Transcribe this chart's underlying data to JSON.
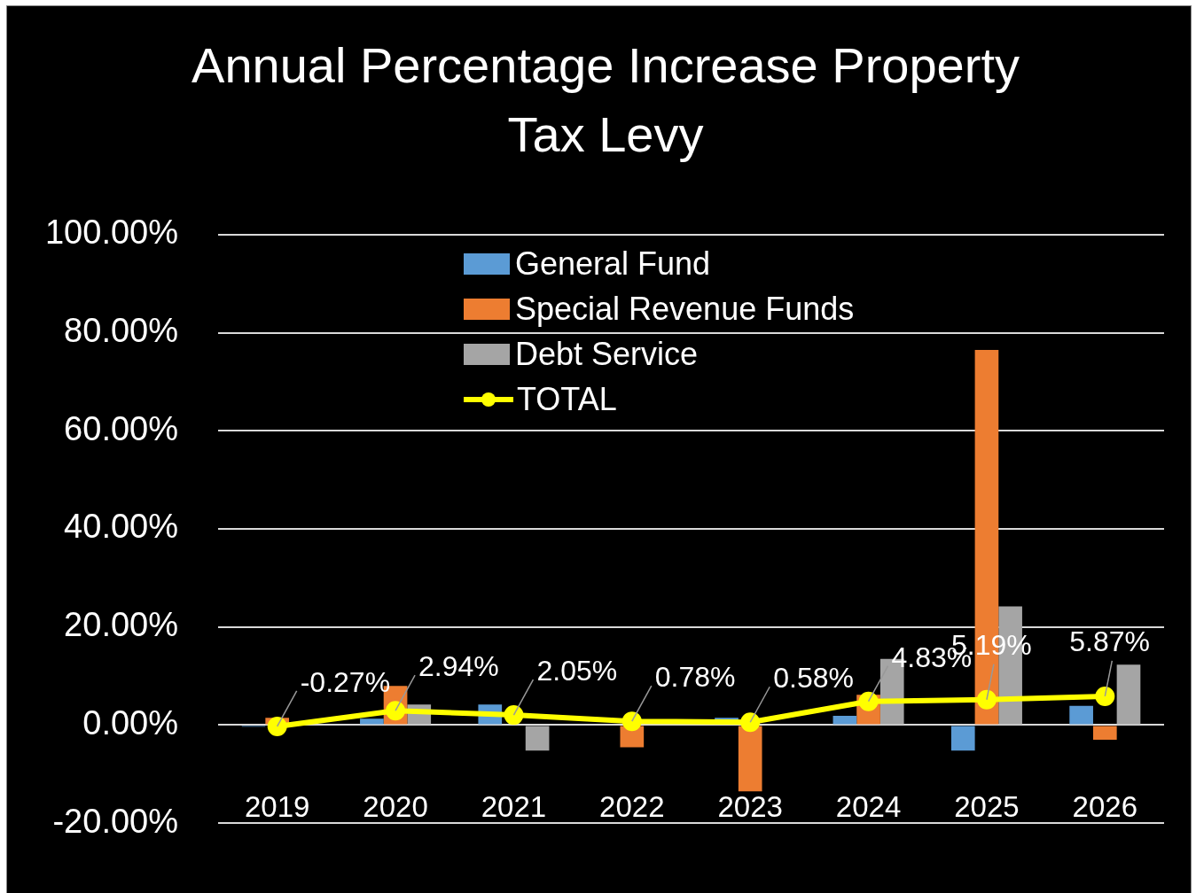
{
  "chart_data": {
    "type": "bar",
    "title": "Annual Percentage Increase Property Tax Levy",
    "categories": [
      "2019",
      "2020",
      "2021",
      "2022",
      "2023",
      "2024",
      "2025",
      "2026"
    ],
    "series": [
      {
        "name": "General Fund",
        "color": "#5b9bd5",
        "values": [
          -0.3,
          1.3,
          4.2,
          null,
          1.5,
          1.9,
          -5.2,
          3.9
        ]
      },
      {
        "name": "Special Revenue Funds",
        "color": "#ed7d31",
        "values": [
          1.5,
          8,
          0,
          -4.5,
          -13.5,
          6.2,
          76.5,
          -3
        ]
      },
      {
        "name": "Debt Service",
        "color": "#a5a5a5",
        "values": [
          0,
          4.2,
          -5.2,
          0,
          0,
          13.5,
          24.2,
          12.3
        ]
      },
      {
        "name": "TOTAL",
        "type": "line",
        "color": "#ffff00",
        "marker": "circle",
        "values": [
          -0.27,
          2.94,
          2.05,
          0.78,
          0.58,
          4.83,
          5.19,
          5.87
        ],
        "value_labels": [
          "-0.27%",
          "2.94%",
          "2.05%",
          "0.78%",
          "0.58%",
          "4.83%",
          "5.19%",
          "5.87%"
        ]
      }
    ],
    "ylim": [
      -20,
      100
    ],
    "yticks": [
      {
        "value": -20,
        "label": "-20.00%"
      },
      {
        "value": 0,
        "label": "0.00%"
      },
      {
        "value": 20,
        "label": "20.00%"
      },
      {
        "value": 40,
        "label": "40.00%"
      },
      {
        "value": 60,
        "label": "60.00%"
      },
      {
        "value": 80,
        "label": "80.00%"
      },
      {
        "value": 100,
        "label": "100.00%"
      }
    ],
    "grid": "y",
    "legend": "top"
  }
}
